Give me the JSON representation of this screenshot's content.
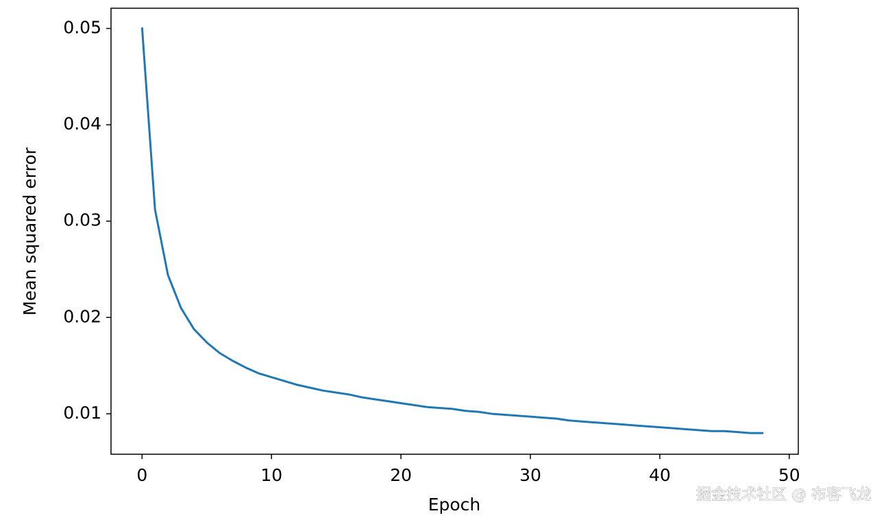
{
  "chart_data": {
    "type": "line",
    "x_label": "Epoch",
    "y_label": "Mean squared error",
    "x": [
      0,
      1,
      2,
      3,
      4,
      5,
      6,
      7,
      8,
      9,
      10,
      11,
      12,
      13,
      14,
      15,
      16,
      17,
      18,
      19,
      20,
      21,
      22,
      23,
      24,
      25,
      26,
      27,
      28,
      29,
      30,
      31,
      32,
      33,
      34,
      35,
      36,
      37,
      38,
      39,
      40,
      41,
      42,
      43,
      44,
      45,
      46,
      47,
      48
    ],
    "series": [
      {
        "color": "#1f77b4",
        "values": [
          0.0501,
          0.0312,
          0.0244,
          0.021,
          0.0188,
          0.0174,
          0.0163,
          0.0155,
          0.0148,
          0.0142,
          0.0138,
          0.0134,
          0.013,
          0.0127,
          0.0124,
          0.0122,
          0.012,
          0.0117,
          0.0115,
          0.0113,
          0.0111,
          0.0109,
          0.0107,
          0.0106,
          0.0105,
          0.0103,
          0.0102,
          0.01,
          0.0099,
          0.0098,
          0.0097,
          0.0096,
          0.0095,
          0.0093,
          0.0092,
          0.0091,
          0.009,
          0.0089,
          0.0088,
          0.0087,
          0.0086,
          0.0085,
          0.0084,
          0.0083,
          0.0082,
          0.0082,
          0.0081,
          0.008,
          0.008
        ]
      }
    ],
    "xlim": [
      -2.4,
      50.7
    ],
    "xticks": [
      0,
      10,
      20,
      30,
      40,
      50
    ],
    "ylim": [
      0.0058,
      0.0521
    ],
    "yticks": [
      0.01,
      0.02,
      0.03,
      0.04,
      0.05
    ],
    "watermark": "掘金技术社区 @ 布客飞龙"
  }
}
